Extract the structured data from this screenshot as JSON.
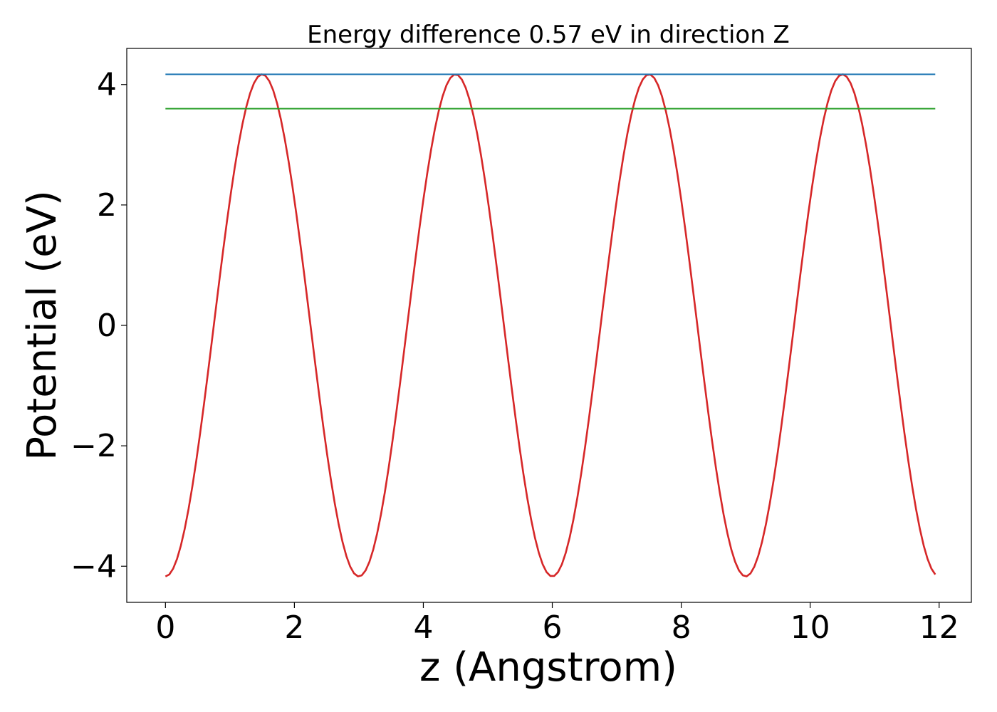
{
  "chart_data": {
    "type": "line",
    "title": "Energy difference 0.57 eV in direction Z",
    "xlabel": "z (Angstrom)",
    "ylabel": "Potential (eV)",
    "xlim": [
      -0.6,
      12.5
    ],
    "ylim": [
      -4.6,
      4.6
    ],
    "xticks": [
      0,
      2,
      4,
      6,
      8,
      10,
      12
    ],
    "xtick_labels": [
      "0",
      "2",
      "4",
      "6",
      "8",
      "10",
      "12"
    ],
    "yticks": [
      -4,
      -2,
      0,
      2,
      4
    ],
    "ytick_labels": [
      "−4",
      "−2",
      "0",
      "2",
      "4"
    ],
    "grid": false,
    "series": [
      {
        "color": "#d62728",
        "curve": "periodic",
        "x_start": 0.0,
        "x_end": 11.94,
        "period": 3.0,
        "amplitude": 4.17,
        "min_value": -4.17,
        "max_value": 4.17,
        "peaks_x": [
          1.5,
          4.5,
          7.5,
          10.5
        ],
        "troughs_x": [
          0.0,
          3.0,
          6.0,
          9.0
        ]
      },
      {
        "color": "#1f77b4",
        "x": [
          0.0,
          11.94
        ],
        "y": [
          4.17,
          4.17
        ]
      },
      {
        "color": "#2ca02c",
        "x": [
          0.0,
          11.94
        ],
        "y": [
          3.6,
          3.6
        ]
      }
    ]
  }
}
